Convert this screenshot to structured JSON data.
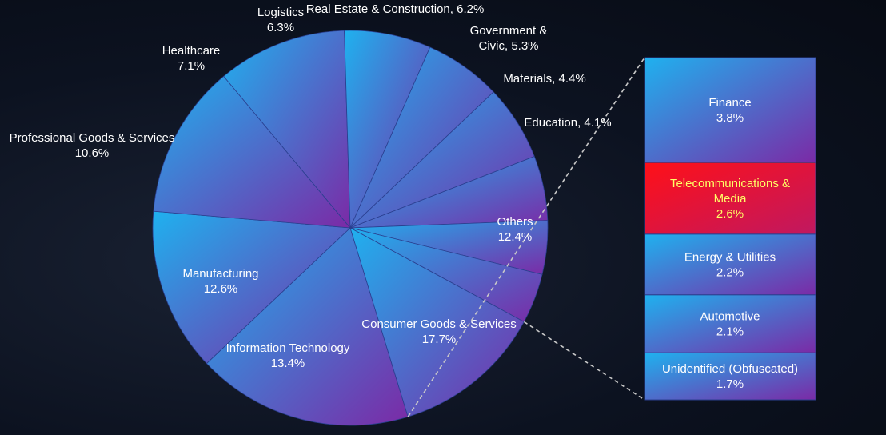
{
  "chart_data": {
    "type": "pie",
    "title": "",
    "slices": [
      {
        "label": "Consumer Goods & Services",
        "value": 17.7,
        "display": "17.7%"
      },
      {
        "label": "Information Technology",
        "value": 13.4,
        "display": "13.4%"
      },
      {
        "label": "Manufacturing",
        "value": 12.6,
        "display": "12.6%"
      },
      {
        "label": "Professional Goods & Services",
        "value": 10.6,
        "display": "10.6%"
      },
      {
        "label": "Healthcare",
        "value": 7.1,
        "display": "7.1%"
      },
      {
        "label": "Logistics",
        "value": 6.3,
        "display": "6.3%"
      },
      {
        "label": "Real Estate & Construction,",
        "value": 6.2,
        "display": "6.2%"
      },
      {
        "label": "Government &\nCivic,",
        "value": 5.3,
        "display": "5.3%"
      },
      {
        "label": "Materials,",
        "value": 4.4,
        "display": "4.4%"
      },
      {
        "label": "Education,",
        "value": 4.1,
        "display": "4.1%"
      },
      {
        "label": "Others",
        "value": 12.4,
        "display": "12.4%"
      }
    ],
    "others_breakdown": [
      {
        "label": "Finance",
        "value": 3.8,
        "display": "3.8%",
        "highlight": false
      },
      {
        "label": "Telecommunications &\nMedia",
        "value": 2.6,
        "display": "2.6%",
        "highlight": true
      },
      {
        "label": "Energy & Utilities",
        "value": 2.2,
        "display": "2.2%",
        "highlight": false
      },
      {
        "label": "Automotive",
        "value": 2.1,
        "display": "2.1%",
        "highlight": false
      },
      {
        "label": "Unidentified (Obfuscated)",
        "value": 1.7,
        "display": "1.7%",
        "highlight": false
      }
    ],
    "colors": {
      "slice_light": "#1fb1ef",
      "slice_dark": "#7b2aa6",
      "highlight": "#ff1018",
      "highlight_text": "#ffff66",
      "text": "#ffffff",
      "connector": "#c8c8c8"
    }
  }
}
